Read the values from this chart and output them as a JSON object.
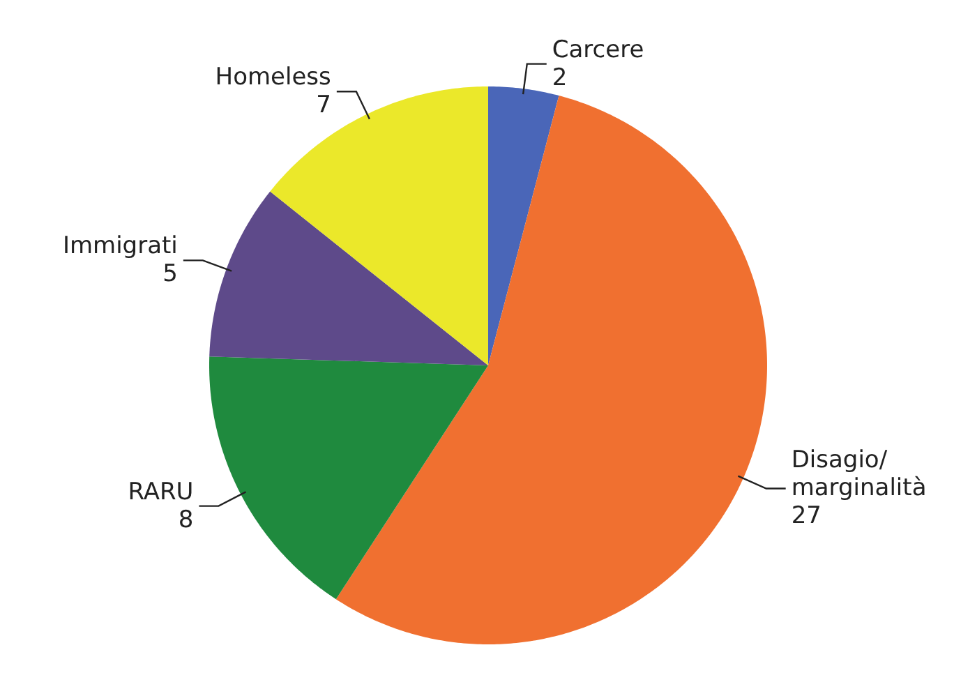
{
  "chart_data": {
    "type": "pie",
    "categories": [
      "Carcere",
      "Disagio/marginalità",
      "RARU",
      "Immigrati",
      "Homeless"
    ],
    "values": [
      2,
      27,
      8,
      5,
      7
    ],
    "colors": [
      "#4a66b8",
      "#f07030",
      "#1f8a3e",
      "#5e4a8a",
      "#ebe82a"
    ],
    "data_labels": true
  }
}
